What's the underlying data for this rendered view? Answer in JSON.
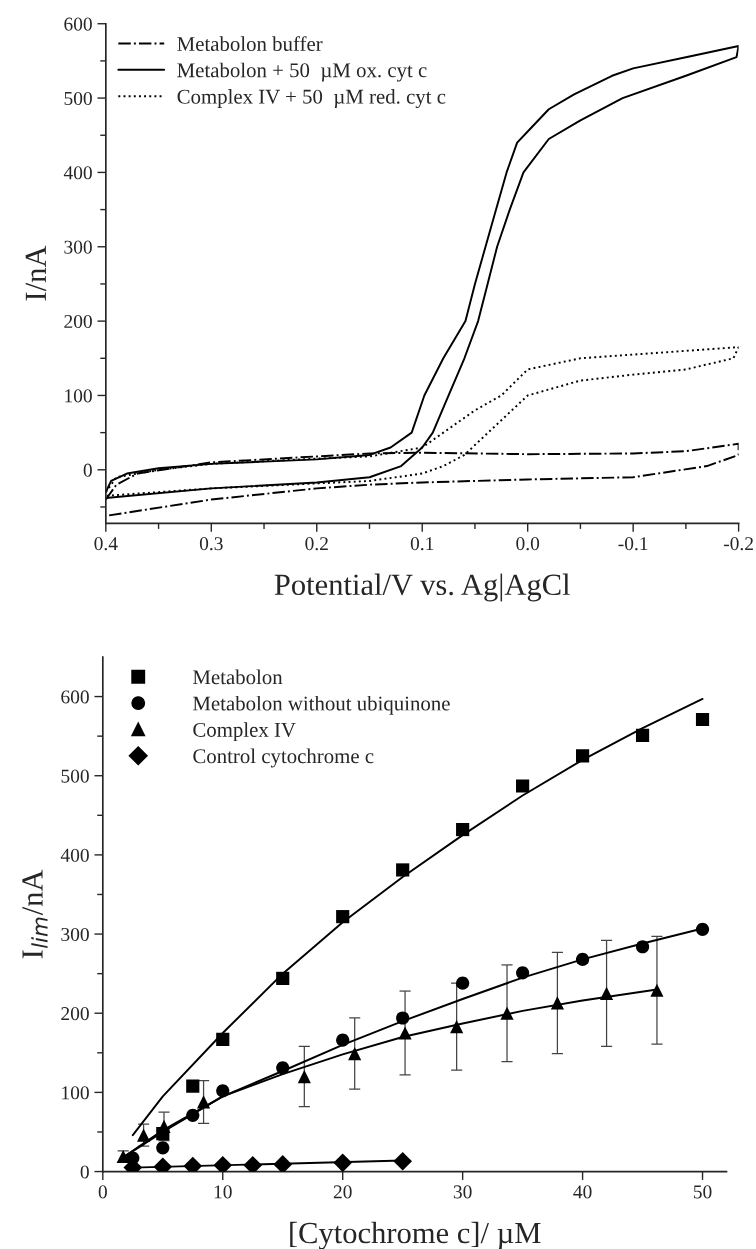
{
  "chart_data": [
    {
      "type": "line",
      "xlabel": "Potential/V vs. Ag|AgCl",
      "ylabel": "I/nA",
      "xlim": [
        0.4,
        -0.2
      ],
      "ylim": [
        -72,
        600
      ],
      "xticks": [
        0.4,
        {
          "value": 0.35,
          "label": null
        },
        0.3,
        {
          "value": 0.25,
          "label": null
        },
        0.2,
        {
          "value": 0.15,
          "label": null
        },
        0.1,
        {
          "value": 0.05,
          "label": null
        },
        {
          "value": 0.0,
          "label": "0.0"
        },
        {
          "value": -0.05,
          "label": null
        },
        -0.1,
        {
          "value": -0.15,
          "label": null
        },
        -0.2
      ],
      "yticks": [
        {
          "value": -50,
          "label": null
        },
        0,
        {
          "value": 50,
          "label": null
        },
        100,
        {
          "value": 150,
          "label": null
        },
        200,
        {
          "value": 250,
          "label": null
        },
        300,
        {
          "value": 350,
          "label": null
        },
        400,
        {
          "value": 450,
          "label": null
        },
        500,
        {
          "value": 550,
          "label": null
        },
        600
      ],
      "grid": false,
      "legend": "top left",
      "series": [
        {
          "name": "Metabolon buffer",
          "color": "#000000",
          "line_style": "dashdot",
          "x": [
            0.4,
            0.39,
            0.37,
            0.3,
            0.2,
            0.15,
            0.1,
            0.0,
            -0.1,
            -0.15,
            -0.2,
            -0.2,
            -0.17,
            -0.1,
            0.0,
            0.1,
            0.15,
            0.2,
            0.3,
            0.4
          ],
          "values": [
            -40,
            -20,
            -5,
            10,
            18,
            22,
            23,
            21,
            22,
            25,
            35,
            20,
            5,
            -10,
            -13,
            -17,
            -20,
            -25,
            -40,
            -62
          ]
        },
        {
          "name": "Metabolon + 50  µM ox. cyt c",
          "color": "#000000",
          "line_style": "solid",
          "x": [
            0.4,
            0.395,
            0.38,
            0.35,
            0.3,
            0.25,
            0.2,
            0.15,
            0.13,
            0.11,
            0.098,
            0.08,
            0.059,
            0.05,
            0.04,
            0.03,
            0.02,
            0.01,
            0.0,
            -0.02,
            -0.044,
            -0.08,
            -0.1,
            -0.15,
            -0.2,
            -0.198,
            -0.15,
            -0.09,
            -0.05,
            -0.02,
            0.004,
            0.017,
            0.029,
            0.038,
            0.047,
            0.06,
            0.075,
            0.09,
            0.1,
            0.12,
            0.15,
            0.2,
            0.3,
            0.4
          ],
          "values": [
            -30,
            -15,
            -5,
            2,
            8,
            11,
            14,
            20,
            30,
            50,
            100,
            150,
            200,
            250,
            300,
            350,
            400,
            440,
            455,
            485,
            505,
            530,
            540,
            555,
            570,
            555,
            530,
            500,
            470,
            445,
            400,
            350,
            300,
            250,
            200,
            150,
            100,
            50,
            30,
            5,
            -10,
            -17,
            -25,
            -38
          ]
        },
        {
          "name": "Complex IV + 50  µM red. cyt c",
          "color": "#000000",
          "line_style": "dotted",
          "x": [
            0.4,
            0.39,
            0.35,
            0.3,
            0.2,
            0.15,
            0.1,
            0.08,
            0.05,
            0.025,
            0.0,
            -0.05,
            -0.1,
            -0.2,
            -0.195,
            -0.15,
            -0.1,
            -0.05,
            0.0,
            0.03,
            0.06,
            0.08,
            0.1,
            0.15,
            0.3,
            0.4
          ],
          "values": [
            -30,
            -10,
            0,
            8,
            15,
            18,
            30,
            50,
            80,
            100,
            135,
            150,
            155,
            165,
            150,
            135,
            128,
            120,
            100,
            60,
            20,
            5,
            -5,
            -15,
            -25,
            -35
          ]
        }
      ]
    },
    {
      "type": "scatter",
      "xlabel": "[Cytochrome c]/ µM",
      "ylabel": "I$_{lim}$/nA",
      "xlim": [
        0,
        52
      ],
      "ylim": [
        0,
        650
      ],
      "xticks": [
        0,
        10,
        20,
        30,
        40,
        50
      ],
      "yticks": [
        0,
        {
          "value": 50,
          "label": null
        },
        100,
        {
          "value": 150,
          "label": null
        },
        200,
        {
          "value": 250,
          "label": null
        },
        300,
        {
          "value": 350,
          "label": null
        },
        400,
        {
          "value": 450,
          "label": null
        },
        500,
        {
          "value": 550,
          "label": null
        },
        600
      ],
      "grid": false,
      "legend": "top left",
      "series": [
        {
          "name": "Metabolon",
          "color": "#000000",
          "marker": "square",
          "x": [
            5,
            7.5,
            10,
            15,
            20,
            25,
            30,
            35,
            40,
            45,
            50
          ],
          "values": [
            48,
            108,
            167,
            244,
            322,
            381,
            432,
            487,
            525,
            551,
            571
          ]
        },
        {
          "name": "Metabolon without ubiquinone",
          "color": "#000000",
          "marker": "circle",
          "x": [
            2.5,
            5,
            7.5,
            10,
            15,
            20,
            25,
            30,
            35,
            40,
            45,
            50
          ],
          "values": [
            17,
            30,
            71,
            102,
            131,
            166,
            194,
            238,
            251,
            268,
            284,
            306
          ]
        },
        {
          "name": "Complex IV",
          "color": "#000000",
          "marker": "triangle",
          "x": [
            1.7,
            3.4,
            5.1,
            8.4,
            16.8,
            21,
            25.2,
            29.5,
            33.7,
            37.9,
            42,
            46.2
          ],
          "values": [
            19,
            46,
            57,
            88,
            120,
            149,
            175,
            183,
            200,
            213,
            225,
            229
          ],
          "errors": [
            7,
            14,
            18,
            27,
            38,
            45,
            53,
            55,
            61,
            64,
            67,
            68
          ]
        },
        {
          "name": "Control cytochrome c",
          "color": "#000000",
          "marker": "diamond",
          "x": [
            2.5,
            5,
            7.5,
            10,
            12.5,
            15,
            20,
            25
          ],
          "values": [
            5,
            6,
            7,
            8,
            8,
            9,
            11,
            13
          ]
        },
        {
          "type": "line",
          "color": "#000000",
          "x": [
            2.5,
            5,
            10,
            15,
            20,
            25,
            30,
            35,
            40,
            45,
            50
          ],
          "values": [
            46,
            95,
            175,
            250,
            315,
            372,
            425,
            475,
            520,
            560,
            597
          ]
        },
        {
          "type": "line",
          "color": "#000000",
          "x": [
            1.7,
            5,
            10,
            15,
            20,
            25,
            30,
            35,
            40,
            45,
            50
          ],
          "values": [
            18,
            50,
            95,
            127,
            160,
            190,
            218,
            245,
            268,
            288,
            307
          ]
        },
        {
          "type": "line",
          "color": "#000000",
          "x": [
            1.7,
            5,
            10,
            15,
            20,
            25,
            30,
            35,
            40,
            46.2
          ],
          "values": [
            18,
            52,
            95,
            123,
            148,
            170,
            187,
            203,
            216,
            230
          ]
        },
        {
          "type": "line",
          "color": "#000000",
          "x": [
            2.5,
            25
          ],
          "values": [
            5,
            14
          ]
        }
      ]
    }
  ]
}
